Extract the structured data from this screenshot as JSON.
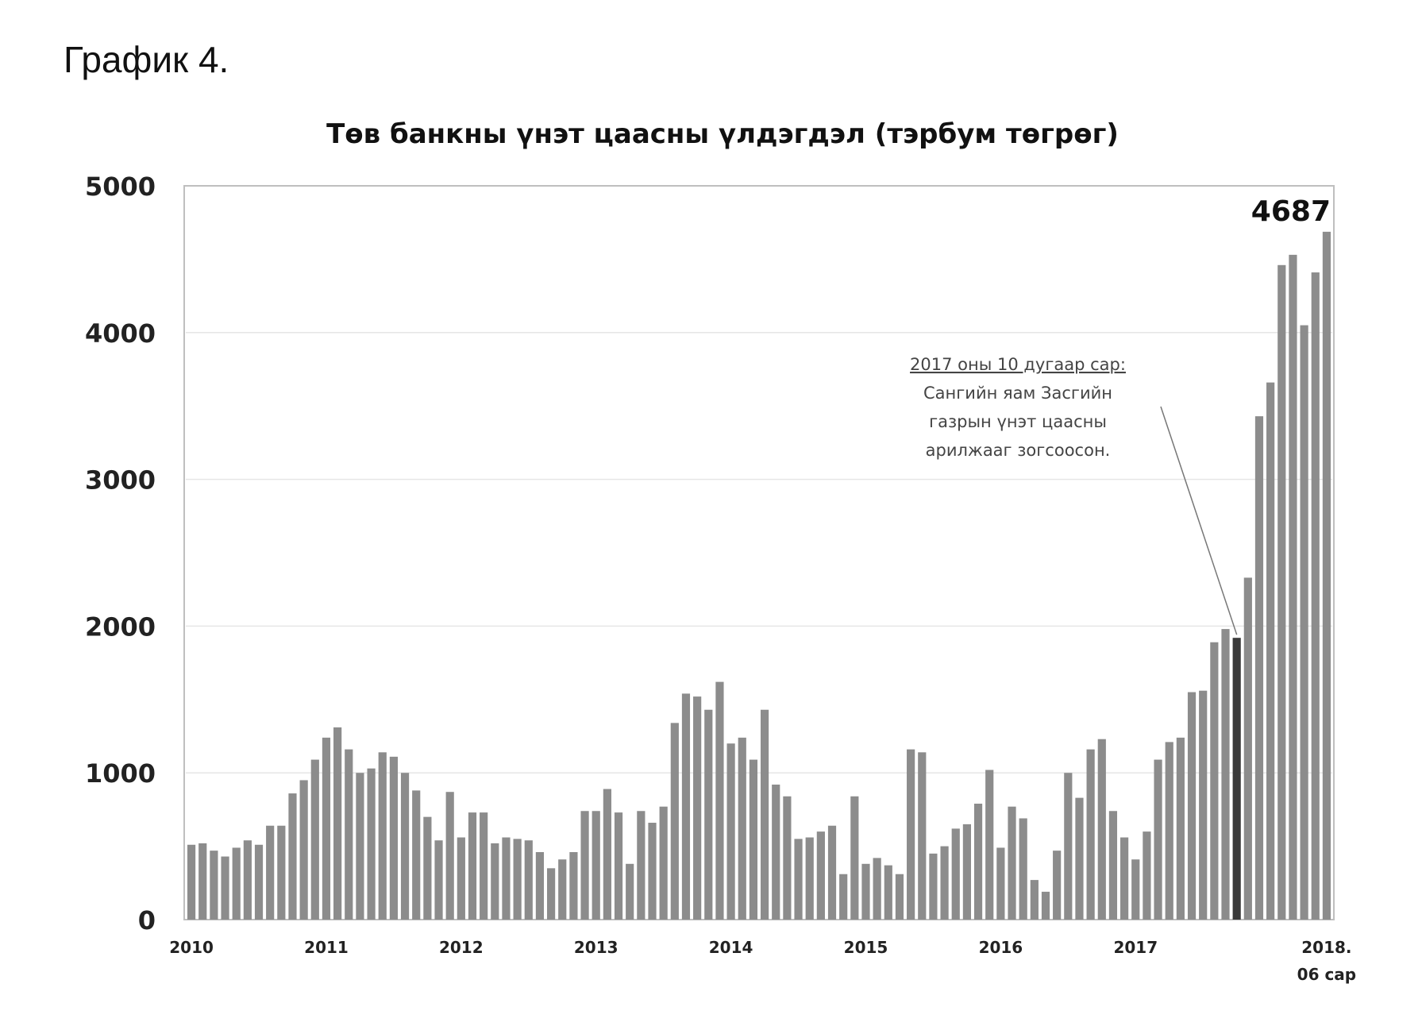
{
  "page": {
    "heading": "График 4."
  },
  "chart_data": {
    "type": "bar",
    "title": "Төв банкны үнэт цаасны үлдэгдэл (тэрбум төгрөг)",
    "xlabel": "",
    "ylabel": "",
    "ylim": [
      0,
      5000
    ],
    "yticks": [
      0,
      1000,
      2000,
      3000,
      4000,
      5000
    ],
    "x_tick_labels": [
      "2010",
      "2011",
      "2012",
      "2013",
      "2014",
      "2015",
      "2016",
      "2017",
      "2018.",
      "06 сар"
    ],
    "grid": true,
    "legend": "none",
    "bar_color": "#8c8c8c",
    "highlight_color": "#3a3a3a",
    "highlight_index": 93,
    "peak_label": "4687",
    "annotation": {
      "heading": "2017 оны 10 дугаар сар:",
      "lines": [
        "Сангийн яам Засгийн",
        "газрын үнэт цаасны",
        "арилжааг зогсоосон."
      ]
    },
    "values": [
      510,
      520,
      470,
      430,
      490,
      540,
      510,
      640,
      640,
      860,
      950,
      1090,
      1240,
      1310,
      1160,
      1000,
      1030,
      1140,
      1110,
      1000,
      880,
      700,
      540,
      870,
      560,
      730,
      730,
      520,
      560,
      550,
      540,
      460,
      350,
      410,
      460,
      740,
      740,
      890,
      730,
      380,
      740,
      660,
      770,
      1340,
      1540,
      1520,
      1430,
      1620,
      1200,
      1240,
      1090,
      1430,
      920,
      840,
      550,
      560,
      600,
      640,
      310,
      840,
      380,
      420,
      370,
      310,
      1160,
      1140,
      450,
      500,
      620,
      650,
      790,
      1020,
      490,
      770,
      690,
      270,
      190,
      470,
      1000,
      830,
      1160,
      1230,
      740,
      560,
      410,
      600,
      1090,
      1210,
      1240,
      1550,
      1560,
      1890,
      1980,
      1920,
      2330,
      3430,
      3660,
      4460,
      4530,
      4050,
      4410,
      4687
    ]
  }
}
